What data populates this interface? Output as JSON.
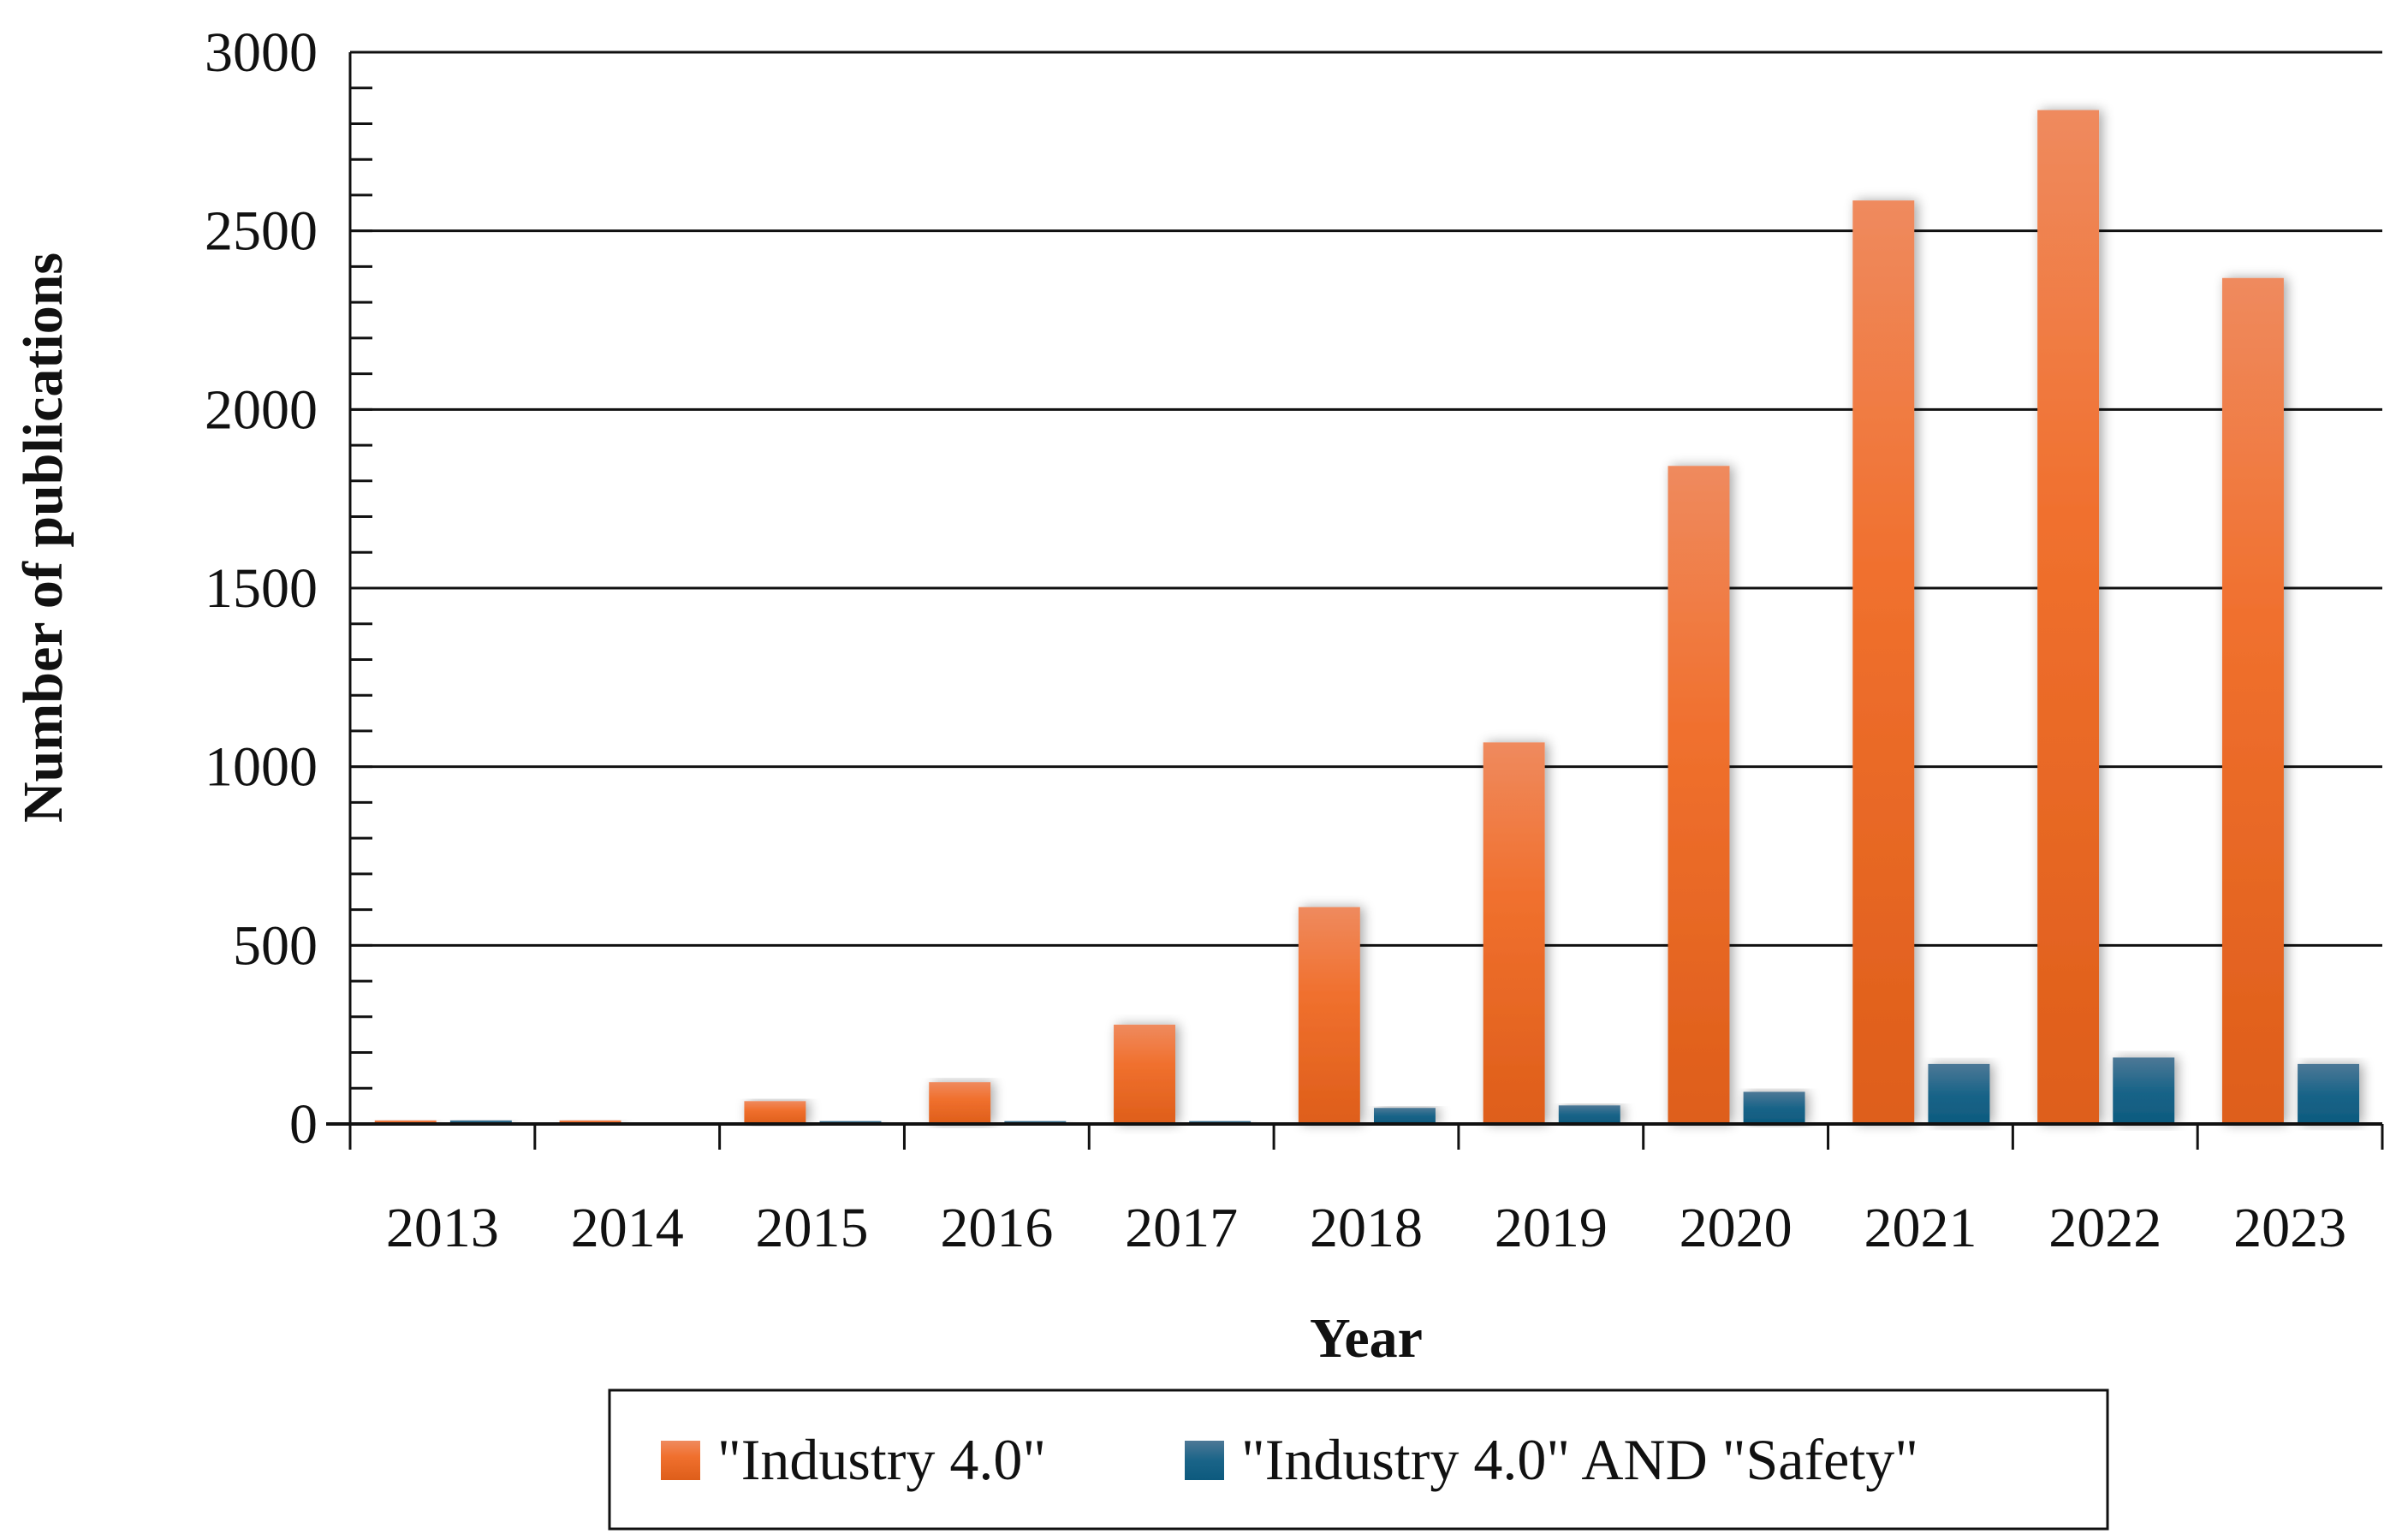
{
  "chart_data": {
    "type": "bar",
    "title": "",
    "xlabel": "Year",
    "ylabel": "Number of publications",
    "categories": [
      "2013",
      "2014",
      "2015",
      "2016",
      "2017",
      "2018",
      "2019",
      "2020",
      "2021",
      "2022",
      "2023"
    ],
    "series": [
      {
        "name": "\"Industry 4.0\"",
        "color": "#EA6A28",
        "values": [
          10,
          10,
          64,
          117,
          278,
          607,
          1068,
          1842,
          2585,
          2838,
          2368
        ]
      },
      {
        "name": "\"Industry 4.0\" AND \"Safety\"",
        "color": "#115E84",
        "values": [
          10,
          0,
          8,
          8,
          8,
          45,
          52,
          90,
          168,
          186,
          168
        ]
      }
    ],
    "ylim": [
      0,
      3000
    ],
    "yticks": [
      0,
      500,
      1000,
      1500,
      2000,
      2500,
      3000
    ],
    "grid": true,
    "legend_position": "bottom"
  }
}
